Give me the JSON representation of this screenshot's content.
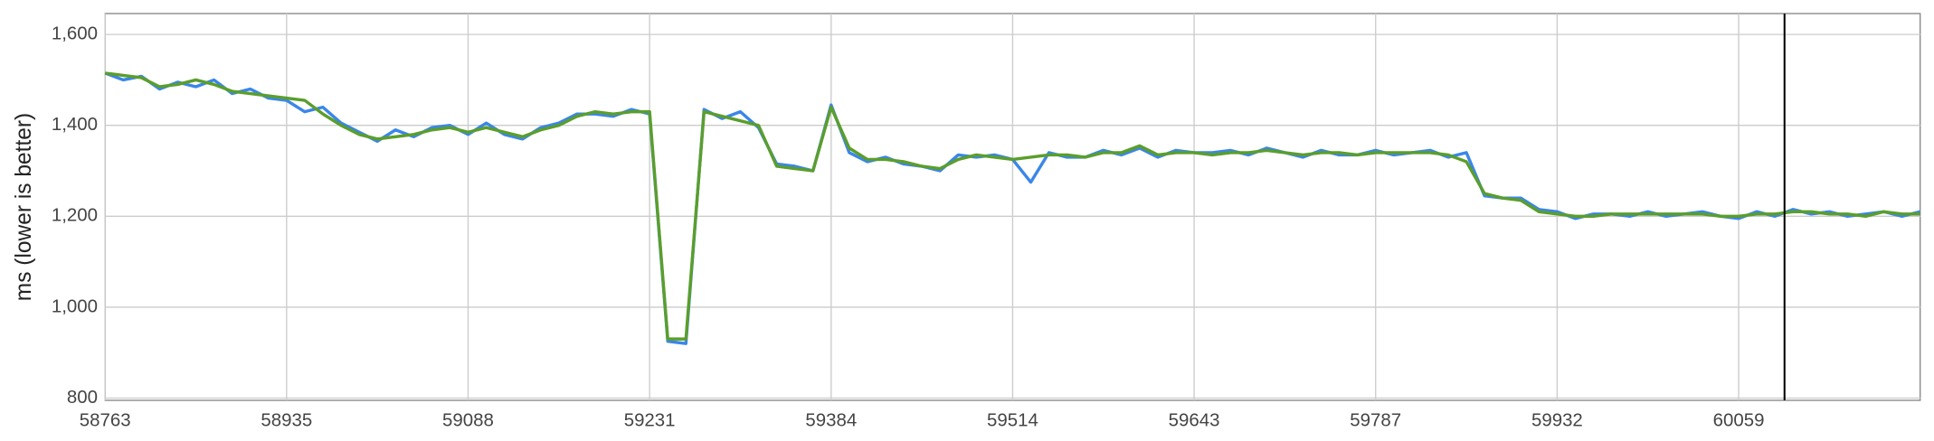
{
  "chart_data": {
    "type": "line",
    "y_label": "ms (lower is better)",
    "categories": [
      "58763",
      null,
      null,
      null,
      null,
      null,
      null,
      null,
      null,
      null,
      "58935",
      null,
      null,
      null,
      null,
      null,
      null,
      null,
      null,
      null,
      "59088",
      null,
      null,
      null,
      null,
      null,
      null,
      null,
      null,
      null,
      "59231",
      null,
      null,
      null,
      null,
      null,
      null,
      null,
      null,
      null,
      "59384",
      null,
      null,
      null,
      null,
      null,
      null,
      null,
      null,
      null,
      "59514",
      null,
      null,
      null,
      null,
      null,
      null,
      null,
      null,
      null,
      "59643",
      null,
      null,
      null,
      null,
      null,
      null,
      null,
      null,
      null,
      "59787",
      null,
      null,
      null,
      null,
      null,
      null,
      null,
      null,
      null,
      "59932",
      null,
      null,
      null,
      null,
      null,
      null,
      null,
      null,
      null,
      "60059",
      null,
      null,
      null,
      null,
      null,
      null,
      null,
      null,
      null,
      null
    ],
    "series": [
      {
        "color": "#3b86e8",
        "values": [
          1515,
          1500,
          1508,
          1480,
          1495,
          1485,
          1500,
          1470,
          1480,
          1460,
          1455,
          1430,
          1440,
          1405,
          1385,
          1365,
          1390,
          1375,
          1395,
          1400,
          1380,
          1405,
          1380,
          1370,
          1395,
          1405,
          1425,
          1425,
          1420,
          1435,
          1425,
          925,
          920,
          1435,
          1415,
          1430,
          1395,
          1315,
          1310,
          1300,
          1445,
          1340,
          1320,
          1330,
          1315,
          1310,
          1300,
          1335,
          1330,
          1335,
          1325,
          1275,
          1340,
          1330,
          1330,
          1345,
          1335,
          1350,
          1330,
          1345,
          1340,
          1340,
          1345,
          1335,
          1350,
          1340,
          1330,
          1345,
          1335,
          1335,
          1345,
          1335,
          1340,
          1345,
          1330,
          1340,
          1245,
          1240,
          1240,
          1215,
          1210,
          1195,
          1205,
          1205,
          1200,
          1210,
          1200,
          1205,
          1210,
          1200,
          1195,
          1210,
          1200,
          1215,
          1205,
          1210,
          1200,
          1205,
          1210,
          1200,
          1210
        ]
      },
      {
        "color": "#5a9e2c",
        "values": [
          1515,
          1510,
          1505,
          1485,
          1490,
          1500,
          1490,
          1475,
          1470,
          1465,
          1460,
          1455,
          1425,
          1400,
          1380,
          1370,
          1375,
          1380,
          1390,
          1395,
          1385,
          1395,
          1385,
          1375,
          1390,
          1400,
          1420,
          1430,
          1425,
          1430,
          1430,
          930,
          930,
          1430,
          1420,
          1410,
          1400,
          1310,
          1305,
          1300,
          1440,
          1350,
          1325,
          1325,
          1320,
          1310,
          1305,
          1325,
          1335,
          1330,
          1325,
          1330,
          1335,
          1335,
          1330,
          1340,
          1340,
          1355,
          1335,
          1340,
          1340,
          1335,
          1340,
          1340,
          1345,
          1340,
          1335,
          1340,
          1340,
          1335,
          1340,
          1340,
          1340,
          1340,
          1335,
          1320,
          1250,
          1240,
          1235,
          1210,
          1205,
          1200,
          1200,
          1205,
          1205,
          1205,
          1205,
          1205,
          1205,
          1200,
          1200,
          1205,
          1205,
          1210,
          1210,
          1205,
          1205,
          1200,
          1210,
          1205,
          1205
        ]
      }
    ],
    "ylim": [
      795,
      1646
    ],
    "yticks": [
      {
        "value": 1600,
        "label": "1,600"
      },
      {
        "value": 1400,
        "label": "1,400"
      },
      {
        "value": 1200,
        "label": "1,200"
      },
      {
        "value": 1000,
        "label": "1,000"
      },
      800
    ],
    "grid": true
  }
}
